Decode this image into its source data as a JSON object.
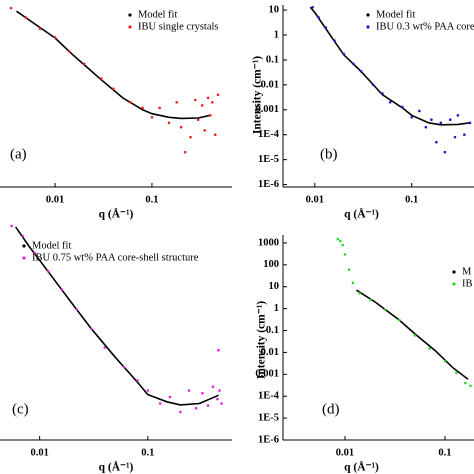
{
  "chart_data": [
    {
      "type": "scatter",
      "panel_label": "(a)",
      "xlabel": "q (Å⁻¹)",
      "log_x": true,
      "log_y": true,
      "xlim": [
        0.0027,
        0.67
      ],
      "ylim": [
        8e-07,
        16
      ],
      "xticks": [
        0.01,
        0.1
      ],
      "series": [
        {
          "name": "Model fit",
          "color": "#000000",
          "x": [
            0.004,
            0.006,
            0.01,
            0.015,
            0.02,
            0.03,
            0.05,
            0.08,
            0.1,
            0.15,
            0.2,
            0.3,
            0.4
          ],
          "values": [
            9,
            3,
            0.76,
            0.17,
            0.063,
            0.016,
            0.003,
            0.001,
            0.0007,
            0.0005,
            0.00045,
            0.00047,
            0.0006
          ]
        },
        {
          "name": "IBU single crystals",
          "color": "#e8231f",
          "x": [
            0.0035,
            0.005,
            0.007,
            0.01,
            0.014,
            0.02,
            0.03,
            0.04,
            0.06,
            0.08,
            0.1,
            0.12,
            0.15,
            0.18,
            0.2,
            0.22,
            0.25,
            0.28,
            0.3,
            0.33,
            0.35,
            0.38,
            0.4,
            0.42,
            0.45,
            0.48
          ],
          "values": [
            12,
            5,
            1.8,
            0.8,
            0.22,
            0.07,
            0.018,
            0.007,
            0.002,
            0.0012,
            0.0005,
            0.0012,
            0.0003,
            0.002,
            0.0002,
            2e-05,
            8e-05,
            0.0025,
            0.0004,
            0.0015,
            0.00015,
            0.003,
            0.0006,
            0.002,
            0.0001,
            0.004
          ]
        }
      ]
    },
    {
      "type": "scatter",
      "panel_label": "(b)",
      "xlabel": "q (Å⁻¹)",
      "ylabel": "Intensity (cm⁻¹)",
      "log_x": true,
      "log_y": true,
      "xlim": [
        0.0047,
        0.44
      ],
      "ylim": [
        8e-07,
        16
      ],
      "xticks": [
        0.01,
        0.1
      ],
      "yticks": [
        {
          "value": 1e-06,
          "label": "1E-6"
        },
        {
          "value": 1e-05,
          "label": "1E-5"
        },
        {
          "value": 0.0001,
          "label": "1E-4"
        },
        0.001,
        0.01,
        0.1,
        1,
        10
      ],
      "series": [
        {
          "name": "Model fit",
          "color": "#000000",
          "x": [
            0.009,
            0.01,
            0.015,
            0.02,
            0.03,
            0.05,
            0.08,
            0.1,
            0.15,
            0.2,
            0.3,
            0.4
          ],
          "values": [
            13,
            8,
            0.8,
            0.16,
            0.035,
            0.004,
            0.0012,
            0.0006,
            0.0003,
            0.00025,
            0.00026,
            0.0003
          ]
        },
        {
          "name": "IBU 0.3 wt% PAA core-",
          "color": "#1c1ccf",
          "x": [
            0.0095,
            0.011,
            0.013,
            0.016,
            0.02,
            0.025,
            0.03,
            0.04,
            0.05,
            0.06,
            0.08,
            0.1,
            0.12,
            0.14,
            0.16,
            0.18,
            0.2,
            0.22,
            0.25,
            0.28,
            0.3,
            0.35,
            0.4
          ],
          "values": [
            13,
            5,
            2,
            0.6,
            0.17,
            0.07,
            0.035,
            0.01,
            0.0045,
            0.002,
            0.0013,
            0.0005,
            0.0009,
            0.0002,
            0.0004,
            5e-05,
            0.0003,
            2e-05,
            0.0004,
            8e-05,
            0.0006,
            0.0001,
            0.0003
          ]
        }
      ]
    },
    {
      "type": "scatter",
      "panel_label": "(c)",
      "xlabel": "q (Å⁻¹)",
      "log_x": true,
      "log_y": true,
      "xlim": [
        0.0043,
        0.6
      ],
      "ylim": [
        1e-06,
        10000
      ],
      "xticks": [
        0.01,
        0.1
      ],
      "series": [
        {
          "name": "Model fit",
          "color": "#000000",
          "x": [
            0.006,
            0.008,
            0.01,
            0.015,
            0.02,
            0.03,
            0.05,
            0.08,
            0.1,
            0.15,
            0.2,
            0.3,
            0.45
          ],
          "values": [
            8000,
            1000,
            230,
            15,
            2.2,
            0.15,
            0.007,
            0.0005,
            0.00013,
            6e-05,
            4.3e-05,
            5e-05,
            0.00012
          ]
        },
        {
          "name": "IBU 0.75 wt% PAA core-shell structure",
          "color": "#e81ee0",
          "x": [
            0.0055,
            0.007,
            0.009,
            0.012,
            0.016,
            0.022,
            0.03,
            0.04,
            0.06,
            0.08,
            0.1,
            0.13,
            0.16,
            0.2,
            0.24,
            0.28,
            0.32,
            0.36,
            0.4,
            0.44,
            0.45,
            0.46,
            0.48
          ],
          "values": [
            9000,
            3000,
            500,
            70,
            10,
            1.2,
            0.15,
            0.02,
            0.0025,
            0.0006,
            0.0002,
            5e-05,
            0.0001,
            2e-05,
            0.0002,
            3e-05,
            0.00015,
            4e-05,
            0.0003,
            8e-05,
            0.015,
            0.0002,
            5e-05
          ]
        }
      ]
    },
    {
      "type": "scatter",
      "panel_label": "(d)",
      "xlabel": "q (Å⁻¹)",
      "ylabel": "Intensity (cm⁻¹)",
      "log_x": true,
      "log_y": true,
      "xlim": [
        0.0024,
        0.195
      ],
      "ylim": [
        1e-06,
        2300
      ],
      "xticks": [
        0.01,
        0.1
      ],
      "yticks": [
        {
          "value": 1e-06,
          "label": "1E-6"
        },
        {
          "value": 1e-05,
          "label": "1E-5"
        },
        {
          "value": 0.0001,
          "label": "1E-4"
        },
        0.001,
        0.01,
        0.1,
        1,
        10,
        100,
        1000
      ],
      "series": [
        {
          "name": "M",
          "color": "#000000",
          "x": [
            0.013,
            0.02,
            0.035,
            0.05,
            0.08,
            0.12,
            0.17
          ],
          "values": [
            7,
            2,
            0.3,
            0.07,
            0.012,
            0.002,
            0.0006
          ]
        },
        {
          "name": "IB",
          "color": "#27d627",
          "x": [
            0.0085,
            0.009,
            0.0095,
            0.01,
            0.011,
            0.012,
            0.014,
            0.018,
            0.025,
            0.035,
            0.05,
            0.07,
            0.1,
            0.13,
            0.16,
            0.18
          ],
          "values": [
            1500,
            1200,
            800,
            300,
            60,
            15,
            5,
            2.5,
            0.9,
            0.3,
            0.06,
            0.015,
            0.004,
            0.0012,
            0.0004,
            0.0003
          ]
        }
      ]
    }
  ]
}
